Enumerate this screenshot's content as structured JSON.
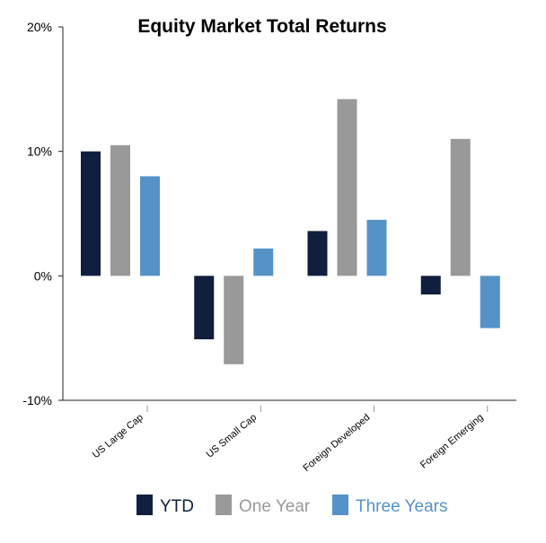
{
  "chart_data": {
    "type": "bar",
    "title": "Equity Market Total Returns",
    "xlabel": "",
    "ylabel": "",
    "categories": [
      "US Large Cap",
      "US Small Cap",
      "Foreign Developed",
      "Foreign Emerging"
    ],
    "series": [
      {
        "name": "YTD",
        "color": "#0f1f3d",
        "values": [
          10.0,
          -5.1,
          3.6,
          -1.5
        ]
      },
      {
        "name": "One Year",
        "color": "#999999",
        "values": [
          10.5,
          -7.1,
          14.2,
          11.0
        ]
      },
      {
        "name": "Three Years",
        "color": "#5592c7",
        "values": [
          8.0,
          2.2,
          4.5,
          -4.2
        ]
      }
    ],
    "ylim": [
      -10,
      20
    ],
    "yticks": [
      -10,
      0,
      10,
      20
    ],
    "ytick_labels": [
      "-10%",
      "0%",
      "10%",
      "20%"
    ],
    "grid": false,
    "legend_position": "bottom"
  }
}
